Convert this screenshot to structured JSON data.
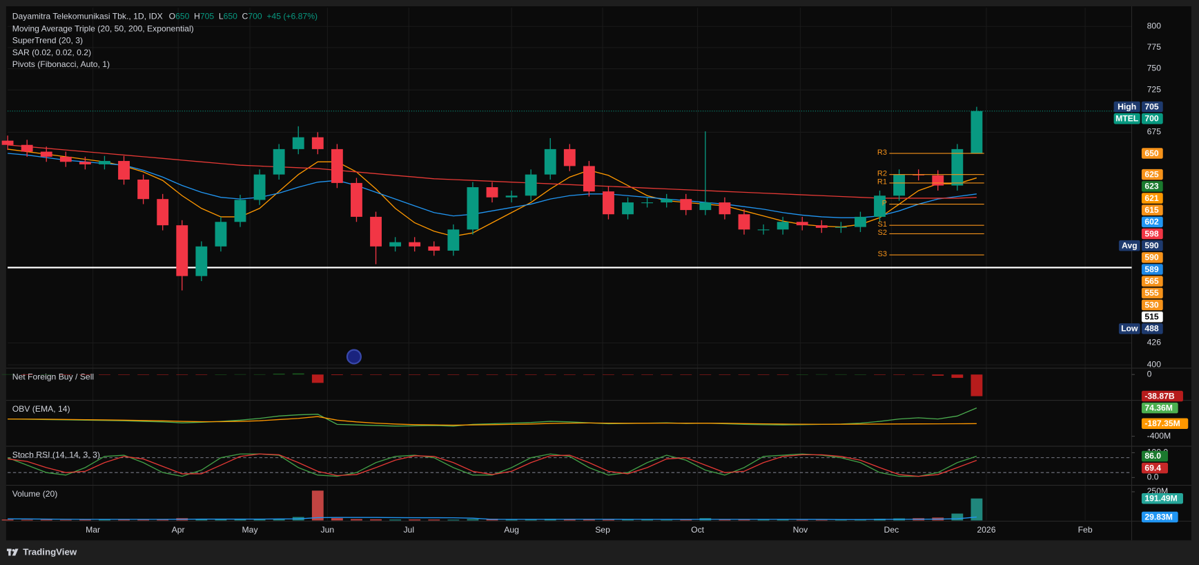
{
  "chart_data": [
    {
      "type": "candlestick",
      "title": "Dayamitra Telekomunikasi Tbk., 1D, IDX",
      "ohlc_letters": [
        "O",
        "H",
        "L",
        "C"
      ],
      "change": "+45 (+6.87%)",
      "legend": [
        "Moving Average Triple (20, 50, 200, Exponential)",
        "SuperTrend (20, 3)",
        "SAR (0.02, 0.02, 0.2)",
        "Pivots (Fibonacci, Auto, 1)"
      ],
      "up_color": "#089981",
      "down_color": "#f23645",
      "open": [
        665,
        660,
        652,
        646,
        640,
        637,
        641,
        619,
        596,
        565,
        505,
        540,
        569,
        595,
        625,
        655,
        669,
        655,
        615,
        575,
        540,
        545,
        540,
        535,
        560,
        610,
        598,
        600,
        625,
        655,
        635,
        605,
        578,
        592,
        592,
        596,
        583,
        592,
        578,
        560,
        560,
        569,
        565,
        562,
        563,
        575,
        600,
        625,
        624,
        612,
        650
      ],
      "high": [
        671,
        666,
        658,
        652,
        646,
        647,
        647,
        625,
        602,
        571,
        546,
        575,
        601,
        631,
        661,
        682,
        675,
        661,
        621,
        581,
        551,
        551,
        546,
        566,
        616,
        616,
        606,
        631,
        668,
        661,
        641,
        611,
        598,
        598,
        602,
        602,
        676,
        598,
        584,
        566,
        575,
        575,
        571,
        569,
        581,
        606,
        631,
        631,
        630,
        661,
        705
      ],
      "low": [
        654,
        646,
        640,
        634,
        631,
        631,
        613,
        590,
        559,
        488,
        499,
        534,
        563,
        589,
        619,
        649,
        649,
        609,
        569,
        519,
        534,
        534,
        529,
        529,
        554,
        592,
        592,
        594,
        619,
        629,
        599,
        572,
        572,
        586,
        586,
        577,
        577,
        572,
        554,
        554,
        554,
        559,
        556,
        556,
        557,
        569,
        594,
        618,
        606,
        606,
        650
      ],
      "close": [
        660,
        652,
        646,
        640,
        637,
        641,
        619,
        596,
        565,
        505,
        540,
        569,
        595,
        625,
        655,
        669,
        655,
        615,
        575,
        540,
        545,
        540,
        535,
        560,
        610,
        598,
        600,
        625,
        655,
        635,
        605,
        578,
        592,
        592,
        596,
        583,
        592,
        578,
        560,
        560,
        569,
        565,
        562,
        563,
        575,
        600,
        625,
        624,
        612,
        655,
        700
      ],
      "series": [
        {
          "color": "#ff9800",
          "values": [
            655,
            652,
            649,
            646,
            643,
            640,
            635,
            628,
            618,
            600,
            585,
            575,
            575,
            585,
            605,
            625,
            640,
            640,
            628,
            608,
            585,
            568,
            558,
            552,
            556,
            568,
            580,
            592,
            608,
            622,
            630,
            624,
            612,
            600,
            594,
            592,
            590,
            588,
            582,
            576,
            570,
            566,
            564,
            563,
            566,
            574,
            590,
            606,
            614,
            614,
            621
          ]
        },
        {
          "color": "#2196f3",
          "values": [
            650,
            648,
            645,
            642,
            640,
            638,
            636,
            630,
            622,
            612,
            604,
            598,
            596,
            598,
            603,
            610,
            616,
            618,
            612,
            604,
            596,
            588,
            580,
            576,
            578,
            582,
            586,
            590,
            596,
            600,
            602,
            602,
            600,
            598,
            596,
            594,
            592,
            590,
            587,
            584,
            580,
            577,
            575,
            574,
            574,
            576,
            582,
            590,
            596,
            599,
            602
          ]
        },
        {
          "color": "#e53935",
          "values": [
            660,
            658,
            656,
            654,
            652,
            650,
            648,
            646,
            644,
            642,
            640,
            638,
            636,
            635,
            634,
            633,
            632,
            630,
            628,
            626,
            624,
            622,
            620,
            619,
            618,
            617,
            616,
            615,
            614,
            613,
            612,
            611,
            610,
            609,
            608,
            607,
            606,
            605,
            604,
            603,
            602,
            601,
            600,
            599,
            598,
            597,
            597,
            597,
            597,
            597,
            598
          ]
        }
      ],
      "pivots": [
        {
          "label": "R3",
          "value": 650
        },
        {
          "label": "R2",
          "value": 625
        },
        {
          "label": "R1",
          "value": 615
        },
        {
          "label": "P",
          "value": 590
        },
        {
          "label": "S1",
          "value": 565
        },
        {
          "label": "S2",
          "value": 555
        },
        {
          "label": "S3",
          "value": 530
        }
      ],
      "pivot_color": "#f7931a",
      "price_lines": [
        {
          "value": 700,
          "color": "#089981",
          "dash": true
        },
        {
          "value": 515,
          "color": "#ffffff",
          "dash": false
        }
      ],
      "tags": [
        {
          "name": "High",
          "value": 705,
          "color": "#1e3a6e"
        },
        {
          "name": "MTEL",
          "value": 700,
          "color": "#089981"
        },
        {
          "value": 650,
          "color": "#f7931a"
        },
        {
          "value": 625,
          "color": "#f7931a"
        },
        {
          "value": 623,
          "color": "#1b7a2e"
        },
        {
          "value": 621,
          "color": "#ff9800"
        },
        {
          "value": 615,
          "color": "#f7931a"
        },
        {
          "value": 602,
          "color": "#2196f3"
        },
        {
          "value": 598,
          "color": "#f23645"
        },
        {
          "name": "Avg",
          "value": 590,
          "color": "#1e3a6e"
        },
        {
          "value": 590,
          "color": "#f7931a"
        },
        {
          "value": 589,
          "color": "#1e88e5"
        },
        {
          "value": 565,
          "color": "#f7931a"
        },
        {
          "value": 555,
          "color": "#f7931a"
        },
        {
          "value": 530,
          "color": "#f7931a"
        },
        {
          "value": 515,
          "color": "#ffffff"
        },
        {
          "name": "Low",
          "value": 488,
          "color": "#1e3a6e"
        }
      ],
      "xlim": [
        0,
        58
      ],
      "xticks": [
        {
          "value": 4.4,
          "label": "Mar"
        },
        {
          "value": 8.8,
          "label": "Apr"
        },
        {
          "value": 12.5,
          "label": "May"
        },
        {
          "value": 16.5,
          "label": "Jun"
        },
        {
          "value": 20.7,
          "label": "Jul"
        },
        {
          "value": 26.0,
          "label": "Aug"
        },
        {
          "value": 30.7,
          "label": "Sep"
        },
        {
          "value": 35.6,
          "label": "Oct"
        },
        {
          "value": 40.9,
          "label": "Nov"
        },
        {
          "value": 45.6,
          "label": "Dec"
        },
        {
          "value": 50.5,
          "label": "2026"
        },
        {
          "value": 55.6,
          "label": "Feb"
        }
      ],
      "ylim": [
        397,
        822
      ],
      "yticks": [
        400,
        426,
        675,
        725,
        750,
        775,
        800
      ],
      "grid": true
    },
    {
      "type": "bar",
      "title": "Net Foreign Buy / Sell",
      "up_color": "#1b5e20",
      "down_color": "#b71c1c",
      "values": [
        0.5,
        -0.3,
        0.2,
        -0.4,
        -0.3,
        -0.2,
        -0.5,
        -0.6,
        -0.3,
        -0.4,
        -0.2,
        0.3,
        0.5,
        0.4,
        1.5,
        2,
        -15,
        -1,
        -0.5,
        -0.4,
        -0.3,
        -0.5,
        -0.4,
        -0.2,
        -0.3,
        -0.5,
        -0.3,
        -0.2,
        -0.4,
        -0.3,
        -0.2,
        -0.3,
        -0.4,
        -0.3,
        -0.2,
        -0.3,
        -0.5,
        -0.3,
        -0.2,
        -0.3,
        -0.2,
        0.3,
        0.5,
        0.4,
        0.2,
        -0.3,
        -0.4,
        -0.5,
        -2,
        -6,
        -38.87
      ],
      "ylim": [
        -45,
        10
      ],
      "yticks": [
        0
      ],
      "tags": [
        {
          "value": -38.87,
          "label": "-38.87B",
          "color": "#b71c1c"
        }
      ]
    },
    {
      "type": "line",
      "title": "OBV (EMA, 14)",
      "series": [
        {
          "color": "#4caf50",
          "values": [
            -110,
            -115,
            -120,
            -125,
            -130,
            -135,
            -140,
            -150,
            -160,
            -175,
            -165,
            -150,
            -130,
            -100,
            -60,
            -40,
            -30,
            -200,
            -210,
            -220,
            -230,
            -225,
            -220,
            -230,
            -200,
            -190,
            -180,
            -170,
            -150,
            -160,
            -175,
            -190,
            -185,
            -180,
            -175,
            -185,
            -180,
            -190,
            -200,
            -205,
            -210,
            -205,
            -200,
            -195,
            -180,
            -150,
            -110,
            -90,
            -110,
            -60,
            74.36
          ]
        },
        {
          "color": "#ff9800",
          "values": [
            -110,
            -112,
            -115,
            -118,
            -122,
            -126,
            -130,
            -136,
            -142,
            -150,
            -155,
            -155,
            -150,
            -140,
            -120,
            -100,
            -70,
            -130,
            -160,
            -180,
            -195,
            -205,
            -210,
            -215,
            -210,
            -205,
            -200,
            -195,
            -185,
            -180,
            -178,
            -180,
            -182,
            -181,
            -180,
            -181,
            -181,
            -183,
            -187,
            -191,
            -195,
            -198,
            -199,
            -198,
            -196,
            -195,
            -194,
            -193,
            -192,
            -190,
            -187.35
          ]
        }
      ],
      "ylim": [
        -555,
        190
      ],
      "yticks": [
        {
          "value": -400,
          "label": "-400M"
        }
      ],
      "tags": [
        {
          "value": 74.36,
          "label": "74.36M",
          "color": "#4caf50"
        },
        {
          "value": -187.35,
          "label": "-187.35M",
          "color": "#ff9800"
        }
      ]
    },
    {
      "type": "line",
      "title": "Stoch RSI (14, 14, 3, 3)",
      "series": [
        {
          "color": "#43a047",
          "values": [
            80,
            50,
            20,
            10,
            40,
            85,
            90,
            60,
            20,
            5,
            30,
            80,
            95,
            95,
            90,
            40,
            10,
            5,
            20,
            60,
            85,
            90,
            80,
            40,
            10,
            10,
            40,
            80,
            95,
            85,
            40,
            10,
            20,
            60,
            90,
            70,
            30,
            10,
            40,
            85,
            90,
            95,
            90,
            80,
            60,
            20,
            5,
            5,
            20,
            60,
            86
          ]
        },
        {
          "color": "#e53935",
          "values": [
            75,
            65,
            40,
            20,
            25,
            60,
            85,
            75,
            45,
            15,
            15,
            50,
            85,
            95,
            92,
            60,
            25,
            8,
            12,
            40,
            70,
            88,
            85,
            60,
            25,
            12,
            25,
            60,
            88,
            90,
            60,
            25,
            15,
            40,
            75,
            80,
            50,
            20,
            25,
            60,
            85,
            92,
            92,
            85,
            70,
            40,
            12,
            5,
            12,
            40,
            69.4
          ]
        }
      ],
      "bands": [
        20,
        80
      ],
      "ylim": [
        -28,
        123
      ],
      "yticks": [
        {
          "value": 0,
          "label": "0.0"
        },
        {
          "value": 100,
          "label": "100.0"
        }
      ],
      "tags": [
        {
          "value": 86,
          "label": "86.0",
          "color": "#1b7a2e"
        },
        {
          "value": 69.4,
          "label": "69.4",
          "color": "#c62828"
        }
      ]
    },
    {
      "type": "bar",
      "title": "Volume (20)",
      "up_color": "#26a69a",
      "down_color": "#ef5350",
      "values": [
        8,
        6,
        7,
        5,
        6,
        8,
        10,
        12,
        9,
        20,
        15,
        10,
        12,
        9,
        15,
        30,
        260,
        20,
        12,
        10,
        8,
        9,
        8,
        7,
        12,
        15,
        10,
        8,
        14,
        12,
        9,
        7,
        6,
        6,
        5,
        7,
        20,
        8,
        7,
        6,
        6,
        5,
        5,
        6,
        10,
        15,
        18,
        20,
        25,
        60,
        191.49
      ],
      "series": [
        {
          "color": "#2196f3",
          "values": [
            14,
            13,
            12,
            11,
            10,
            10,
            10,
            10,
            10,
            11,
            12,
            12,
            12,
            12,
            13,
            14,
            25,
            26,
            26,
            26,
            25,
            24,
            24,
            23,
            20,
            10,
            10,
            10,
            10,
            11,
            11,
            11,
            10,
            10,
            9,
            9,
            10,
            10,
            10,
            10,
            10,
            9,
            9,
            8,
            8,
            9,
            10,
            11,
            12,
            15,
            29.83
          ]
        }
      ],
      "ylim": [
        0,
        300
      ],
      "yticks": [
        {
          "value": 250,
          "label": "250M"
        }
      ],
      "tags": [
        {
          "value": 191.49,
          "label": "191.49M",
          "color": "#26a69a"
        },
        {
          "value": 29.83,
          "label": "29.83M",
          "color": "#2196f3"
        }
      ]
    }
  ],
  "footer": "TradingView"
}
